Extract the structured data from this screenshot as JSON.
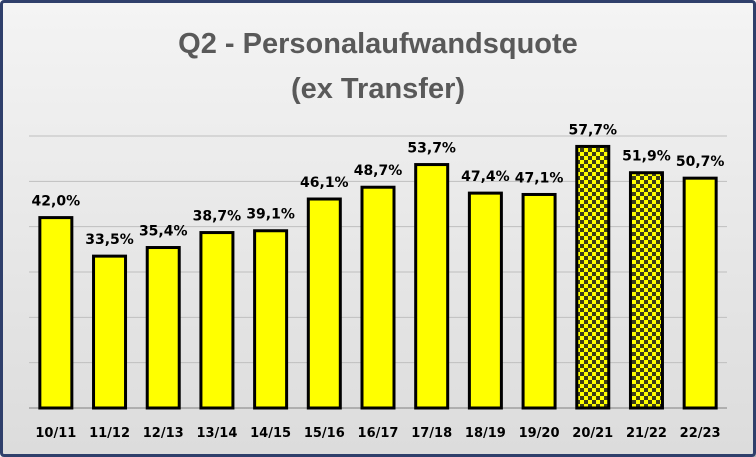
{
  "chart_data": {
    "type": "bar",
    "title_lines": [
      "Q2 - Personalaufwandsquote",
      "(ex Transfer)"
    ],
    "categories": [
      "10/11",
      "11/12",
      "12/13",
      "13/14",
      "14/15",
      "15/16",
      "16/17",
      "17/18",
      "18/19",
      "19/20",
      "20/21",
      "21/22",
      "22/23"
    ],
    "values": [
      42.0,
      33.5,
      35.4,
      38.7,
      39.1,
      46.1,
      48.7,
      53.7,
      47.4,
      47.1,
      57.7,
      51.9,
      50.7
    ],
    "value_labels": [
      "42,0%",
      "33,5%",
      "35,4%",
      "38,7%",
      "39,1%",
      "46,1%",
      "48,7%",
      "53,7%",
      "47,4%",
      "47,1%",
      "57,7%",
      "51,9%",
      "50,7%"
    ],
    "highlighted": [
      "20/21",
      "21/22"
    ],
    "ylim": [
      0,
      60
    ],
    "grid": true,
    "legend": "none",
    "colors": {
      "bar_fill": "#ffff00",
      "bar_border": "#000000",
      "checker_dark": "#3d3d1a",
      "frame_border": "#2f3f6b",
      "gridline": "#bfbfbf",
      "title": "#595959"
    }
  }
}
